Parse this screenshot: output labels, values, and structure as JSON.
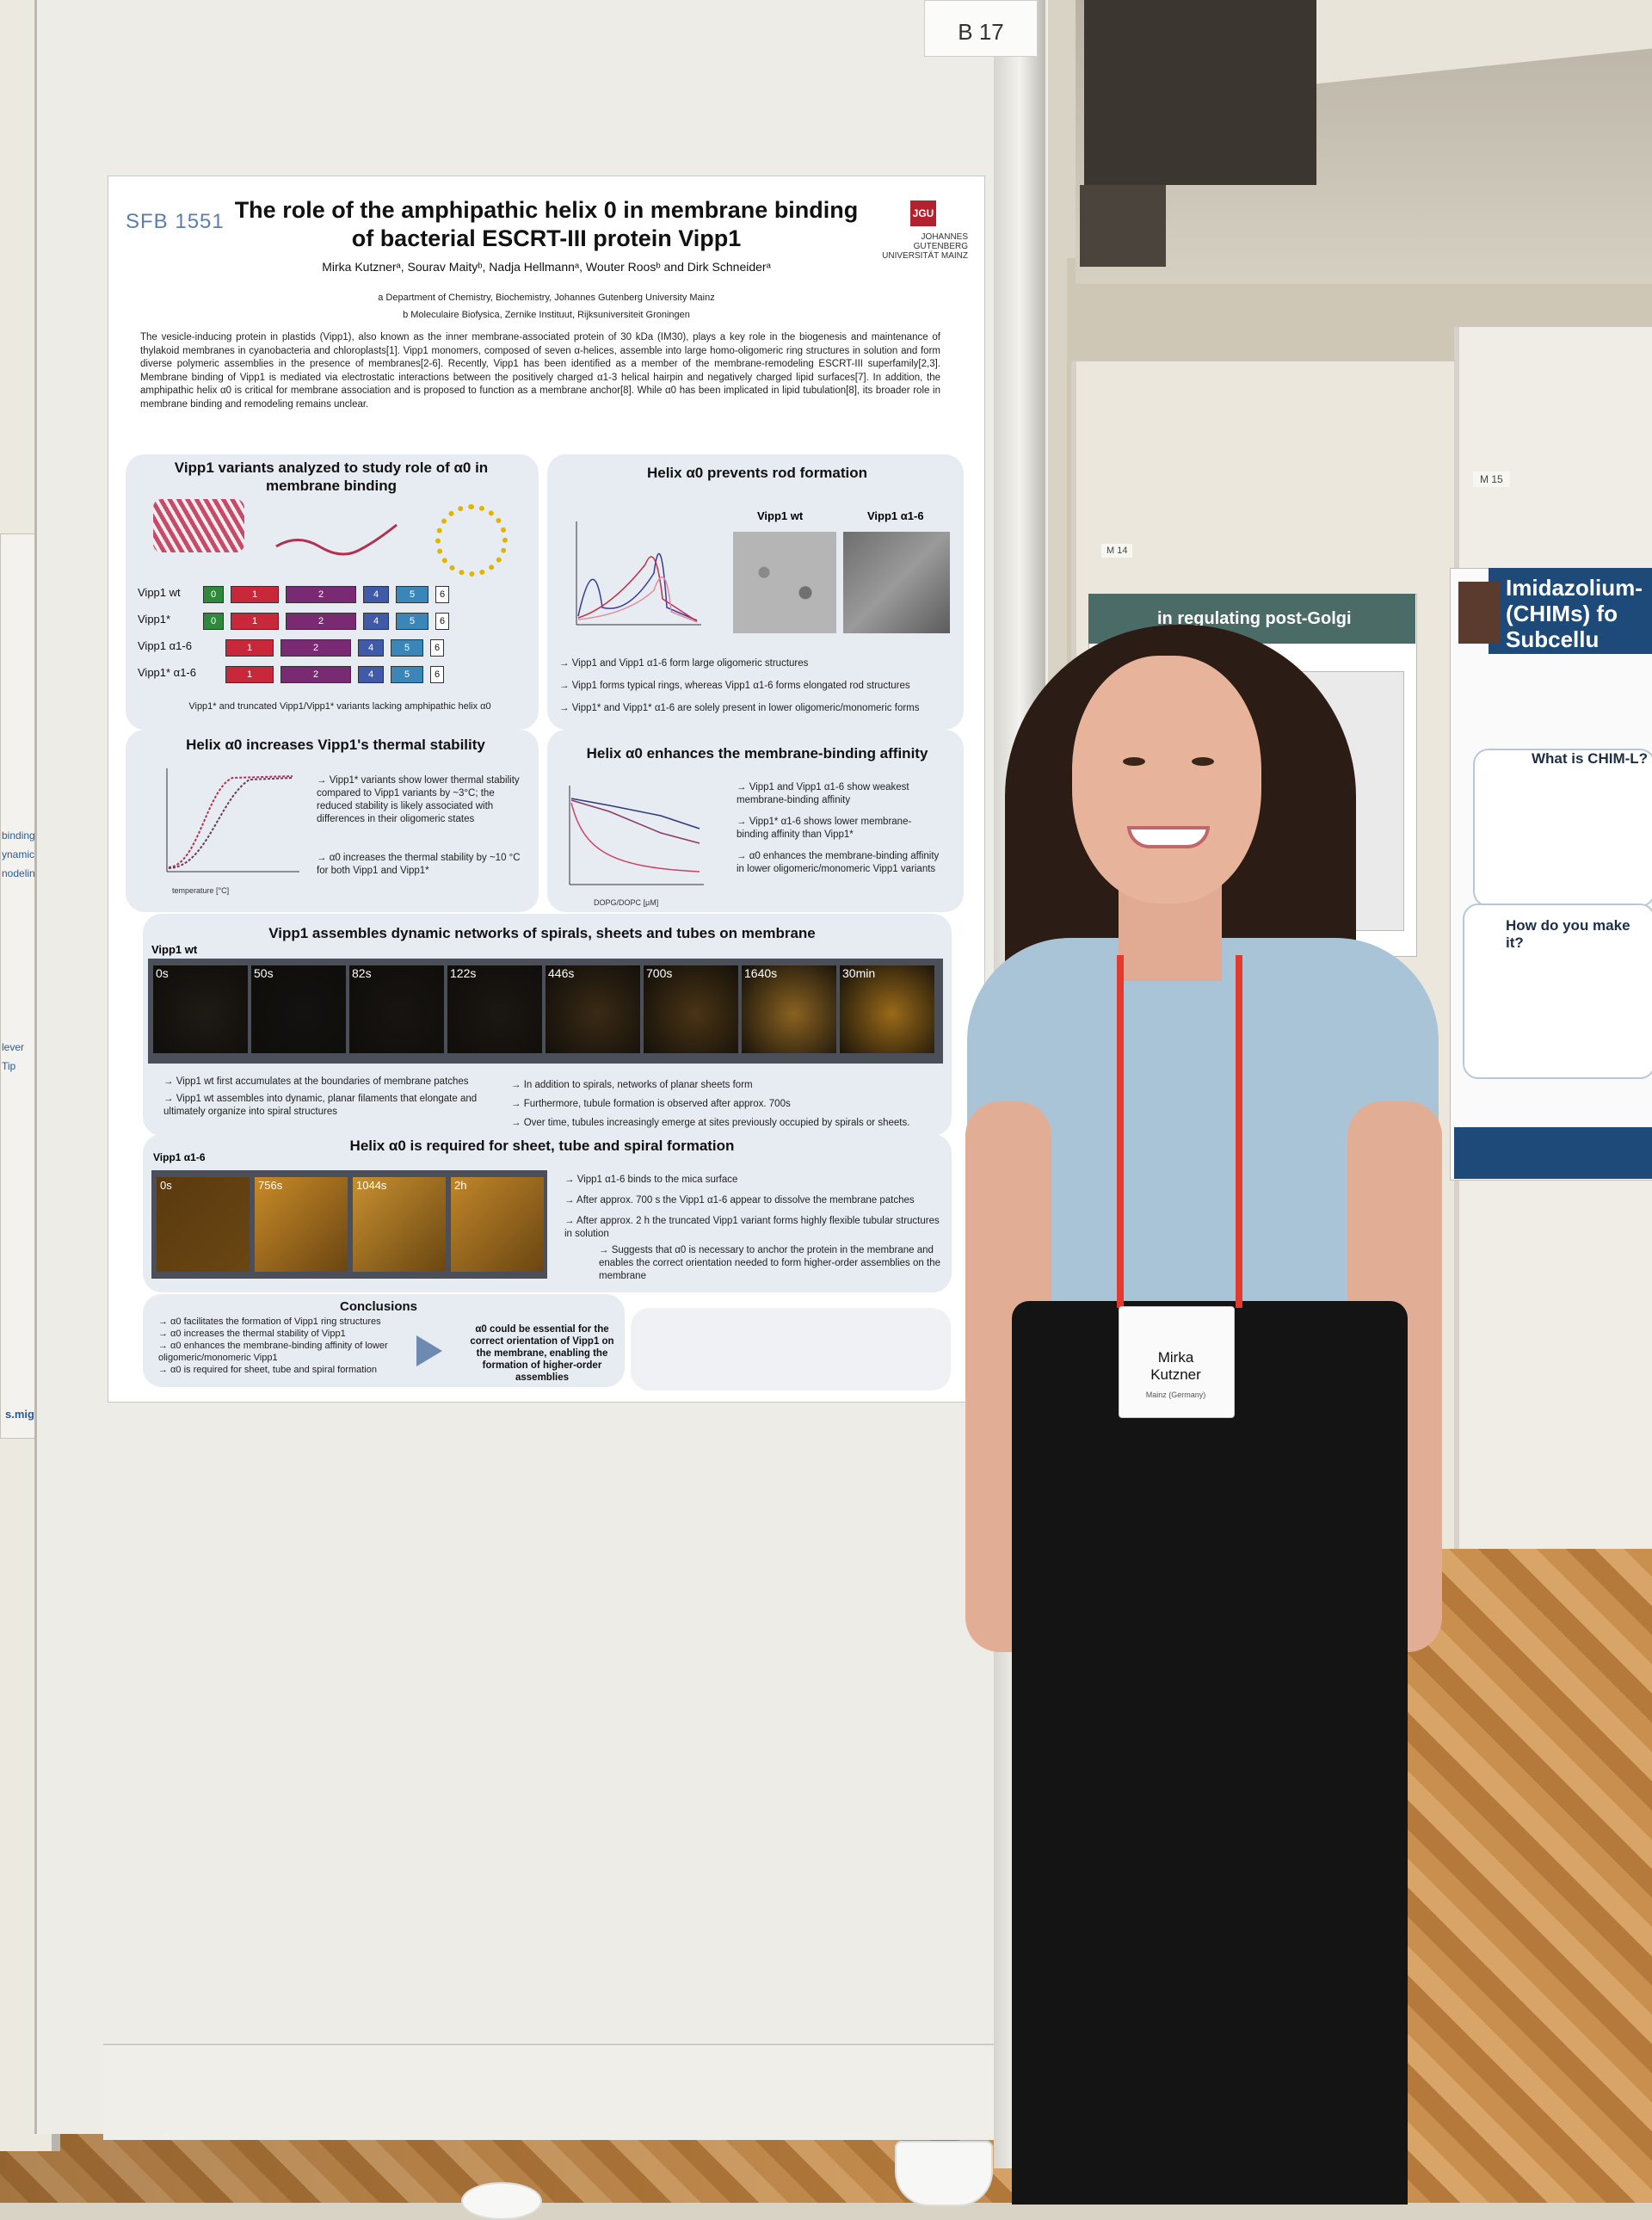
{
  "board_number": "B 17",
  "right_labels": {
    "m14": "M 14",
    "m15": "M 15"
  },
  "right_poster_1": {
    "header": "in regulating post-Golgi trafficking"
  },
  "right_poster_2": {
    "header": "Imidazolium-(CHIMs) fo Subcellu",
    "what_is": "What is CHIM-L?",
    "how": "How do you make it?"
  },
  "left_panel": {
    "fragments": [
      "binding,",
      "ynamics",
      "nodeling",
      "lever",
      "Tip"
    ],
    "url": "s.mig.de"
  },
  "poster": {
    "sfb_logo": "SFB 1551",
    "jgu_logo": "JGU",
    "jgu_text": "JOHANNES GUTENBERG UNIVERSITÄT MAINZ",
    "title": "The role of the amphipathic helix 0 in membrane binding of bacterial ESCRT-III protein Vipp1",
    "authors": "Mirka Kutznerᵃ, Sourav Maityᵇ, Nadja Hellmannᵃ, Wouter Roosᵇ and Dirk Schneiderᵃ",
    "affil_a": "a Department of Chemistry, Biochemistry, Johannes Gutenberg University Mainz",
    "affil_b": "b Moleculaire Biofysica, Zernike Instituut, Rijksuniversiteit Groningen",
    "abstract": "The vesicle-inducing protein in plastids (Vipp1), also known as the inner membrane-associated protein of 30 kDa (IM30), plays a key role in the biogenesis and maintenance of thylakoid membranes in cyanobacteria and chloroplasts[1]. Vipp1 monomers, composed of seven α-helices, assemble into large homo-oligomeric ring structures in solution and form diverse polymeric assemblies in the presence of membranes[2-6]. Recently, Vipp1 has been identified as a member of the membrane-remodeling ESCRT-III superfamily[2,3]. Membrane binding of Vipp1 is mediated via electrostatic interactions between the positively charged α1-3 helical hairpin and negatively charged lipid surfaces[7]. In addition, the amphipathic helix α0 is critical for membrane association and is proposed to function as a membrane anchor[8]. While α0 has been implicated in lipid tubulation[8], its broader role in membrane binding and remodeling remains unclear.",
    "section1": {
      "title": "Vipp1 variants analyzed to study role of α0 in membrane binding",
      "rows": [
        "Vipp1 wt",
        "Vipp1*",
        "Vipp1 α1-6",
        "Vipp1* α1-6"
      ],
      "caption": "Vipp1* and truncated Vipp1/Vipp1* variants lacking amphipathic helix α0"
    },
    "section2": {
      "title": "Helix α0 prevents rod formation",
      "em_wt": "Vipp1 wt",
      "em_a16": "Vipp1 α1-6",
      "bullets": [
        "→ Vipp1 and Vipp1 α1-6 form large oligomeric structures",
        "→ Vipp1 forms typical rings, whereas Vipp1 α1-6 forms elongated rod structures",
        "→ Vipp1* and Vipp1* α1-6 are solely present in lower oligomeric/monomeric forms"
      ]
    },
    "section3": {
      "title": "Helix α0 increases Vipp1's thermal stability",
      "bullets": [
        "→ Vipp1* variants show lower thermal stability compared to Vipp1 variants by ~3°C; the reduced stability is likely associated with differences in their oligomeric states",
        "→ α0 increases the thermal stability by ~10 °C for both Vipp1 and Vipp1*"
      ],
      "xlabel": "temperature [°C]"
    },
    "section4": {
      "title": "Helix α0 enhances the membrane-binding affinity",
      "bullets": [
        "→ Vipp1 and Vipp1 α1-6 show weakest membrane-binding affinity",
        "→ Vipp1* α1-6 shows lower membrane-binding affinity than Vipp1*",
        "→ α0 enhances the membrane-binding affinity in lower oligomeric/monomeric Vipp1 variants"
      ],
      "xlabel": "DOPG/DOPC [μM]"
    },
    "section5": {
      "title": "Vipp1 assembles dynamic networks of spirals, sheets and tubes on membrane",
      "label": "Vipp1 wt",
      "frames": [
        "0s",
        "50s",
        "82s",
        "122s",
        "446s",
        "700s",
        "1640s",
        "30min"
      ],
      "left_bullets": [
        "→ Vipp1 wt first accumulates at the boundaries of membrane patches",
        "→ Vipp1 wt assembles into dynamic, planar filaments that elongate and ultimately organize into spiral structures"
      ],
      "right_bullets": [
        "→ In addition to spirals, networks of planar sheets form",
        "→ Furthermore, tubule formation is observed after approx. 700s",
        "→ Over time, tubules increasingly emerge at sites previously occupied by spirals or sheets."
      ]
    },
    "section6": {
      "title": "Helix α0 is required for sheet, tube and spiral formation",
      "label": "Vipp1 α1-6",
      "frames": [
        "0s",
        "756s",
        "1044s",
        "2h"
      ],
      "bullets": [
        "→ Vipp1 α1-6 binds to the mica surface",
        "→ After approx. 700 s the Vipp1 α1-6 appear to dissolve the membrane patches",
        "→ After approx. 2 h the truncated Vipp1 variant forms highly flexible tubular structures in solution",
        "→ Suggests that α0 is necessary to anchor the protein in the membrane and enables the correct orientation needed to form higher-order assemblies on the membrane"
      ]
    },
    "conclusions": {
      "title": "Conclusions",
      "bullets": [
        "→ α0 facilitates the formation of Vipp1 ring structures",
        "→ α0 increases the thermal stability of Vipp1",
        "→ α0 enhances the membrane-binding affinity of lower oligomeric/monomeric Vipp1",
        "→ α0 is required for sheet, tube and spiral formation"
      ],
      "statement": "α0 could be essential for the correct orientation of Vipp1 on the membrane, enabling the formation of higher-order assemblies"
    }
  },
  "badge": {
    "first": "Mirka",
    "last": "Kutzner",
    "sub": "Mainz (Germany)"
  },
  "colors": {
    "poster_box": "#e7ebf2",
    "jgu_red": "#b3212e",
    "lanyard": "#e23a2f",
    "shirt": "#a9c4d7"
  }
}
